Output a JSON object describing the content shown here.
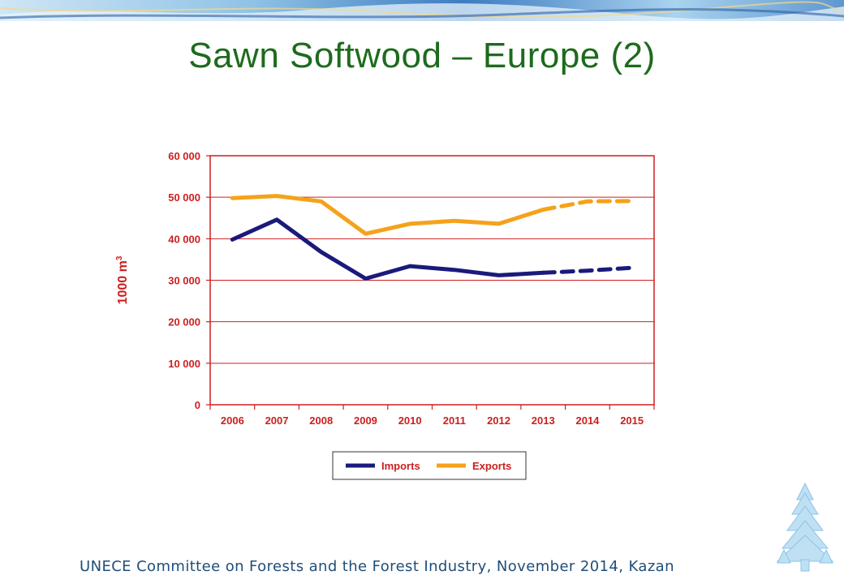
{
  "slide": {
    "title": "Sawn Softwood – Europe (2)",
    "footer": "UNECE Committee on Forests and the Forest Industry, November 2014, Kazan"
  },
  "chart_data": {
    "type": "line",
    "ylabel": "1000 m",
    "ylabel_superscript": "3",
    "categories": [
      "2006",
      "2007",
      "2008",
      "2009",
      "2010",
      "2011",
      "2012",
      "2013",
      "2014",
      "2015"
    ],
    "y_ticks": [
      0,
      10000,
      20000,
      30000,
      40000,
      50000,
      60000
    ],
    "y_tick_labels": [
      "0",
      "10 000",
      "20 000",
      "30 000",
      "40 000",
      "50 000",
      "60 000"
    ],
    "ylim": [
      0,
      60000
    ],
    "grid": true,
    "legend_position": "bottom",
    "forecast_from": "2013",
    "series": [
      {
        "name": "Imports",
        "color": "#1a1a7c",
        "values": [
          39800,
          44600,
          36800,
          30400,
          33400,
          32500,
          31200,
          31800,
          32300,
          33000
        ]
      },
      {
        "name": "Exports",
        "color": "#f5a21b",
        "values": [
          49800,
          50300,
          49000,
          41200,
          43600,
          44300,
          43600,
          47000,
          49000,
          49100
        ]
      }
    ],
    "axis_color": "#cc1f1f"
  }
}
